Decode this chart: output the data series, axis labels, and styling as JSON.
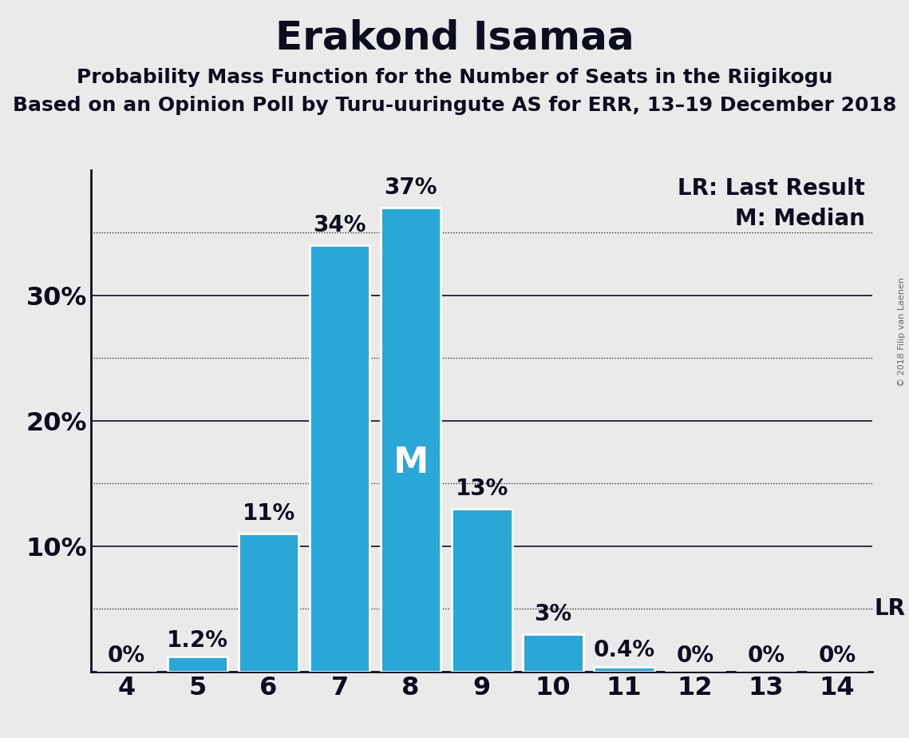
{
  "title": "Erakond Isamaa",
  "subtitle1": "Probability Mass Function for the Number of Seats in the Riigikogu",
  "subtitle2": "Based on an Opinion Poll by Turu-uuringute AS for ERR, 13–19 December 2018",
  "copyright": "© 2018 Filip van Laenen",
  "seats": [
    4,
    5,
    6,
    7,
    8,
    9,
    10,
    11,
    12,
    13,
    14
  ],
  "probabilities": [
    0.0,
    1.2,
    11.0,
    34.0,
    37.0,
    13.0,
    3.0,
    0.4,
    0.0,
    0.0,
    0.0
  ],
  "bar_color": "#29a8d8",
  "bar_edge_color": "#ffffff",
  "median_seat": 8,
  "lr_value": 5.0,
  "legend_lr": "LR: Last Result",
  "legend_m": "M: Median",
  "ylim": [
    0,
    40
  ],
  "solid_grid": [
    10,
    20,
    30
  ],
  "dotted_grid": [
    5,
    15,
    25,
    35
  ],
  "ytick_positions": [
    10,
    20,
    30
  ],
  "ytick_labels": [
    "10%",
    "20%",
    "30%"
  ],
  "background_color": "#eaeaea",
  "title_fontsize": 36,
  "subtitle_fontsize": 18,
  "tick_fontsize": 23,
  "bar_label_fontsize": 20,
  "legend_fontsize": 20,
  "median_label_fontsize": 32,
  "lr_label_fontsize": 20
}
